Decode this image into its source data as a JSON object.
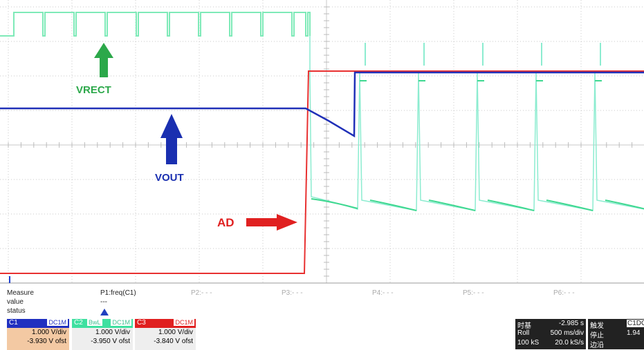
{
  "annotations": {
    "vrect": "VRECT",
    "vout": "VOUT",
    "ad": "AD"
  },
  "measure": {
    "label": "Measure",
    "params": [
      "P1:freq(C1)",
      "P2:- - -",
      "P3:- - -",
      "P4:- - -",
      "P5:- - -",
      "P6:- - -"
    ],
    "value_label": "value",
    "value": "---",
    "status_label": "status"
  },
  "channels": [
    {
      "name": "C1",
      "coupling": "DC1M",
      "vdiv": "1.000 V/div",
      "offset": "-3.930 V ofst"
    },
    {
      "name": "C2",
      "bw": "BwL",
      "coupling": "DC1M",
      "vdiv": "1.000 V/div",
      "offset": "-3.950 V ofst"
    },
    {
      "name": "C3",
      "coupling": "DC1M",
      "vdiv": "1.000 V/div",
      "offset": "-3.840 V ofst"
    }
  ],
  "timebase": {
    "label": "时基",
    "delay": "-2.985 s",
    "mode": "Roll",
    "tdiv": "500 ms/div",
    "points": "100 kS",
    "rate": "20.0 kS/s"
  },
  "trigger": {
    "label": "触发",
    "state": "停止",
    "type": "边沿",
    "source": "C1",
    "coupling": "DC",
    "level": "1.94"
  }
}
